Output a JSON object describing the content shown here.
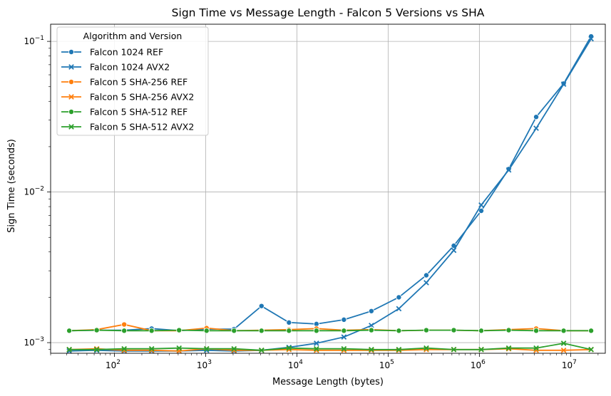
{
  "chart_data": {
    "type": "line",
    "title": "Sign Time vs Message Length - Falcon 5 Versions vs SHA",
    "xlabel": "Message Length (bytes)",
    "ylabel": "Sign Time (seconds)",
    "xscale": "log",
    "yscale": "log",
    "xlim": [
      20,
      24000000
    ],
    "ylim": [
      0.00085,
      0.13
    ],
    "grid": true,
    "legend": {
      "title": "Algorithm and Version",
      "placement": "top-left"
    },
    "x_ticks": [
      {
        "value": 100,
        "base": "10",
        "exp": "2"
      },
      {
        "value": 1000,
        "base": "10",
        "exp": "3"
      },
      {
        "value": 10000,
        "base": "10",
        "exp": "4"
      },
      {
        "value": 100000,
        "base": "10",
        "exp": "5"
      },
      {
        "value": 1000000,
        "base": "10",
        "exp": "6"
      },
      {
        "value": 10000000,
        "base": "10",
        "exp": "7"
      }
    ],
    "y_ticks": [
      {
        "value": 0.001,
        "base": "10",
        "exp": "−3"
      },
      {
        "value": 0.01,
        "base": "10",
        "exp": "−2"
      },
      {
        "value": 0.1,
        "base": "10",
        "exp": "−1"
      }
    ],
    "x": [
      32,
      64,
      128,
      256,
      512,
      1024,
      2048,
      4096,
      8192,
      16384,
      32768,
      65536,
      131072,
      262144,
      524288,
      1048576,
      2097152,
      4194304,
      8388608,
      16777216
    ],
    "series": [
      {
        "name": "Falcon 1024 REF",
        "color": "#1f77b4",
        "marker": "circle",
        "values": [
          0.0012,
          0.00121,
          0.00121,
          0.00124,
          0.0012,
          0.00123,
          0.00123,
          0.00175,
          0.00136,
          0.00133,
          0.00142,
          0.00162,
          0.002,
          0.0028,
          0.0044,
          0.0075,
          0.0142,
          0.0315,
          0.0525,
          0.108
        ]
      },
      {
        "name": "Falcon 1024 AVX2",
        "color": "#1f77b4",
        "marker": "x",
        "values": [
          0.00088,
          0.00089,
          0.00088,
          0.00088,
          0.00088,
          0.00089,
          0.00088,
          0.00089,
          0.00093,
          0.00099,
          0.00109,
          0.0013,
          0.00168,
          0.0025,
          0.0041,
          0.0082,
          0.014,
          0.0265,
          0.052,
          0.104
        ]
      },
      {
        "name": "Falcon 5 SHA-256 REF",
        "color": "#ff7f0e",
        "marker": "circle",
        "values": [
          0.0012,
          0.00122,
          0.00132,
          0.0012,
          0.0012,
          0.00125,
          0.0012,
          0.00121,
          0.00122,
          0.00124,
          0.00121,
          0.00122,
          0.0012,
          0.00121,
          0.00121,
          0.0012,
          0.00122,
          0.00124,
          0.0012,
          0.0012
        ]
      },
      {
        "name": "Falcon 5 SHA-256 AVX2",
        "color": "#ff7f0e",
        "marker": "x",
        "values": [
          0.0009,
          0.00091,
          0.00089,
          0.00089,
          0.00088,
          0.00091,
          0.00089,
          0.00089,
          0.0009,
          0.00089,
          0.00089,
          0.00089,
          0.00089,
          0.0009,
          0.0009,
          0.0009,
          0.00091,
          0.00089,
          0.00089,
          0.0009
        ]
      },
      {
        "name": "Falcon 5 SHA-512 REF",
        "color": "#2ca02c",
        "marker": "circle",
        "values": [
          0.0012,
          0.00121,
          0.0012,
          0.0012,
          0.00121,
          0.0012,
          0.0012,
          0.0012,
          0.0012,
          0.0012,
          0.0012,
          0.00121,
          0.0012,
          0.00121,
          0.00121,
          0.0012,
          0.00121,
          0.0012,
          0.0012,
          0.0012
        ]
      },
      {
        "name": "Falcon 5 SHA-512 AVX2",
        "color": "#2ca02c",
        "marker": "x",
        "values": [
          0.0009,
          0.0009,
          0.00091,
          0.00091,
          0.00092,
          0.00091,
          0.00091,
          0.00089,
          0.00092,
          0.00091,
          0.00091,
          0.0009,
          0.0009,
          0.00092,
          0.0009,
          0.0009,
          0.00092,
          0.00092,
          0.00099,
          0.0009
        ]
      }
    ]
  }
}
